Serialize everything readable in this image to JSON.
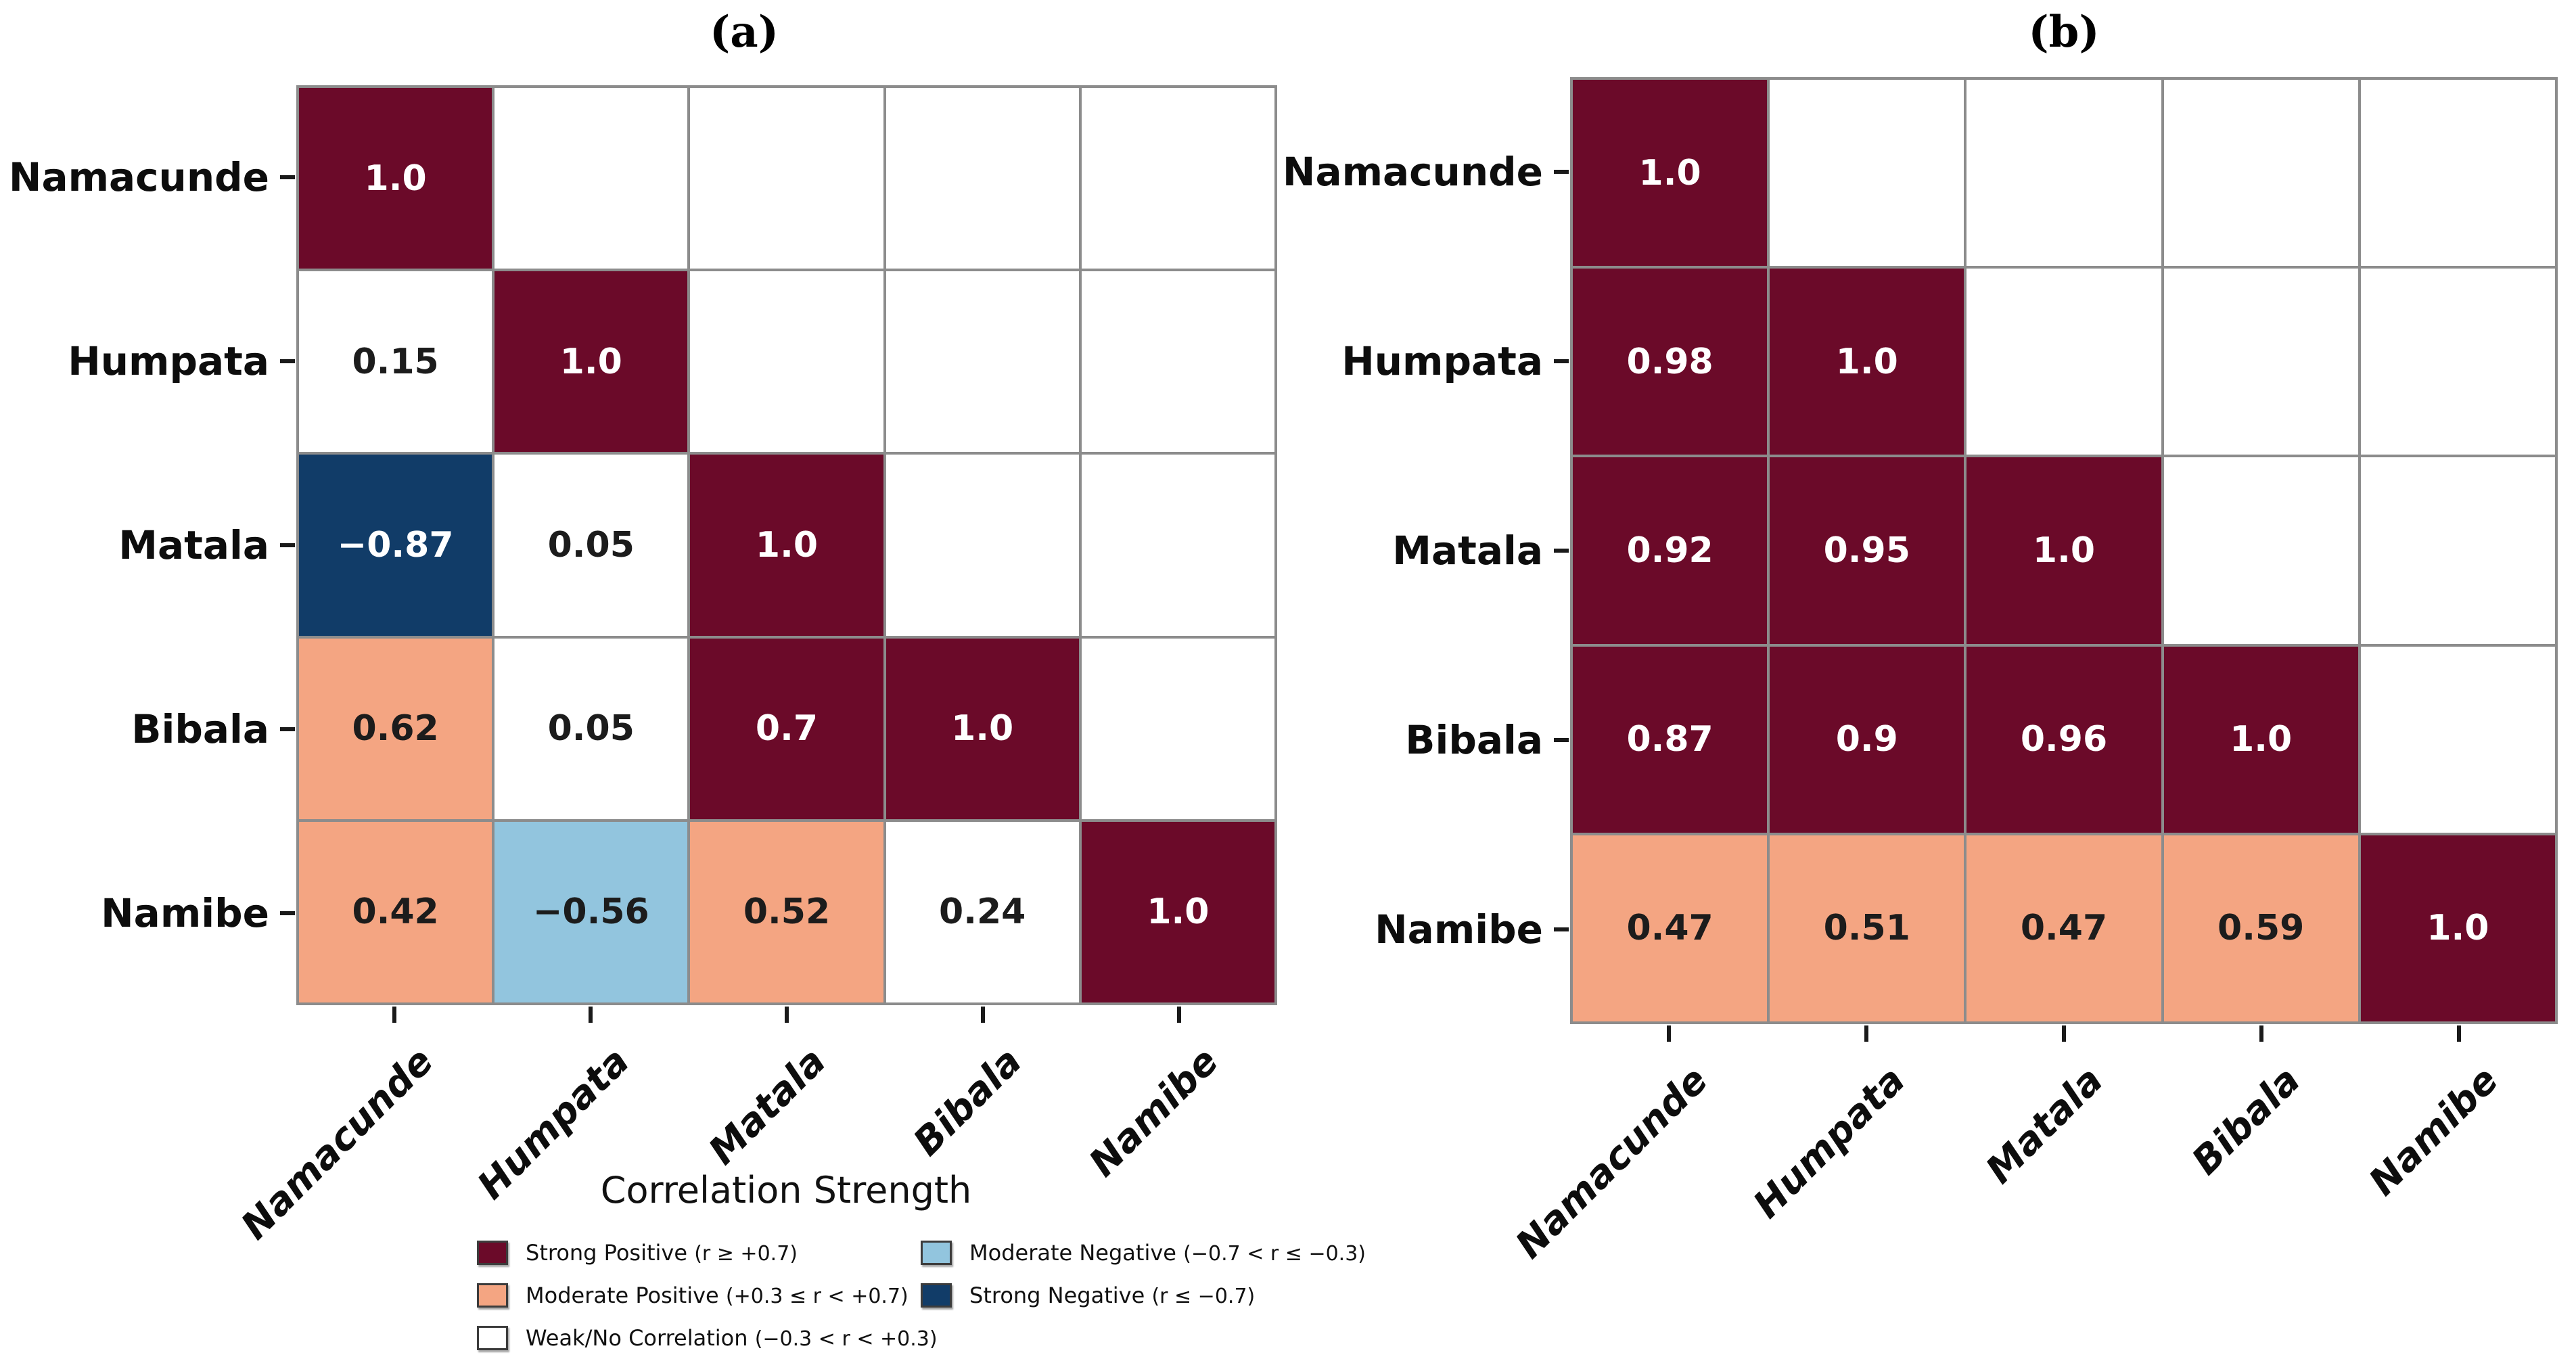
{
  "chart_data": [
    {
      "type": "heatmap",
      "panel": "(a)",
      "description": "lower-triangular correlation matrix",
      "categories": [
        "Namacunde",
        "Humpata",
        "Matala",
        "Bibala",
        "Namibe"
      ],
      "matrix": [
        [
          1.0,
          null,
          null,
          null,
          null
        ],
        [
          0.15,
          1.0,
          null,
          null,
          null
        ],
        [
          -0.87,
          0.05,
          1.0,
          null,
          null
        ],
        [
          0.62,
          0.05,
          0.7,
          1.0,
          null
        ],
        [
          0.42,
          -0.56,
          0.52,
          0.24,
          1.0
        ]
      ],
      "grid": true,
      "value_range": [
        -1,
        1
      ]
    },
    {
      "type": "heatmap",
      "panel": "(b)",
      "description": "lower-triangular correlation matrix",
      "categories": [
        "Namacunde",
        "Humpata",
        "Matala",
        "Bibala",
        "Namibe"
      ],
      "matrix": [
        [
          1.0,
          null,
          null,
          null,
          null
        ],
        [
          0.98,
          1.0,
          null,
          null,
          null
        ],
        [
          0.92,
          0.95,
          1.0,
          null,
          null
        ],
        [
          0.87,
          0.9,
          0.96,
          1.0,
          null
        ],
        [
          0.47,
          0.51,
          0.47,
          0.59,
          1.0
        ]
      ],
      "grid": true,
      "value_range": [
        -1,
        1
      ]
    }
  ],
  "legend": {
    "title": "Correlation Strength",
    "position": "below panel (a)",
    "entries": [
      {
        "label": "Strong Positive",
        "range": "(r ≥ +0.7)",
        "category": "strong_positive",
        "color": "#6b0a29"
      },
      {
        "label": "Moderate Positive",
        "range": "(+0.3 ≤ r < +0.7)",
        "category": "moderate_positive",
        "color": "#f4a582"
      },
      {
        "label": "Weak/No Correlation",
        "range": "(−0.3 < r < +0.3)",
        "category": "weak",
        "color": "#ffffff"
      },
      {
        "label": "Moderate Negative",
        "range": "(−0.7 < r ≤ −0.3)",
        "category": "moderate_negative",
        "color": "#92c5de"
      },
      {
        "label": "Strong Negative",
        "range": "(r ≤ −0.7)",
        "category": "strong_negative",
        "color": "#113c68"
      }
    ]
  },
  "colors": {
    "strong_positive": "#6b0a29",
    "moderate_positive": "#f4a582",
    "weak": "#ffffff",
    "moderate_negative": "#92c5de",
    "strong_negative": "#113c68",
    "grid_line": "#8c8c8c",
    "dark_text": "#1c1c1c",
    "light_text": "#ffffff"
  }
}
